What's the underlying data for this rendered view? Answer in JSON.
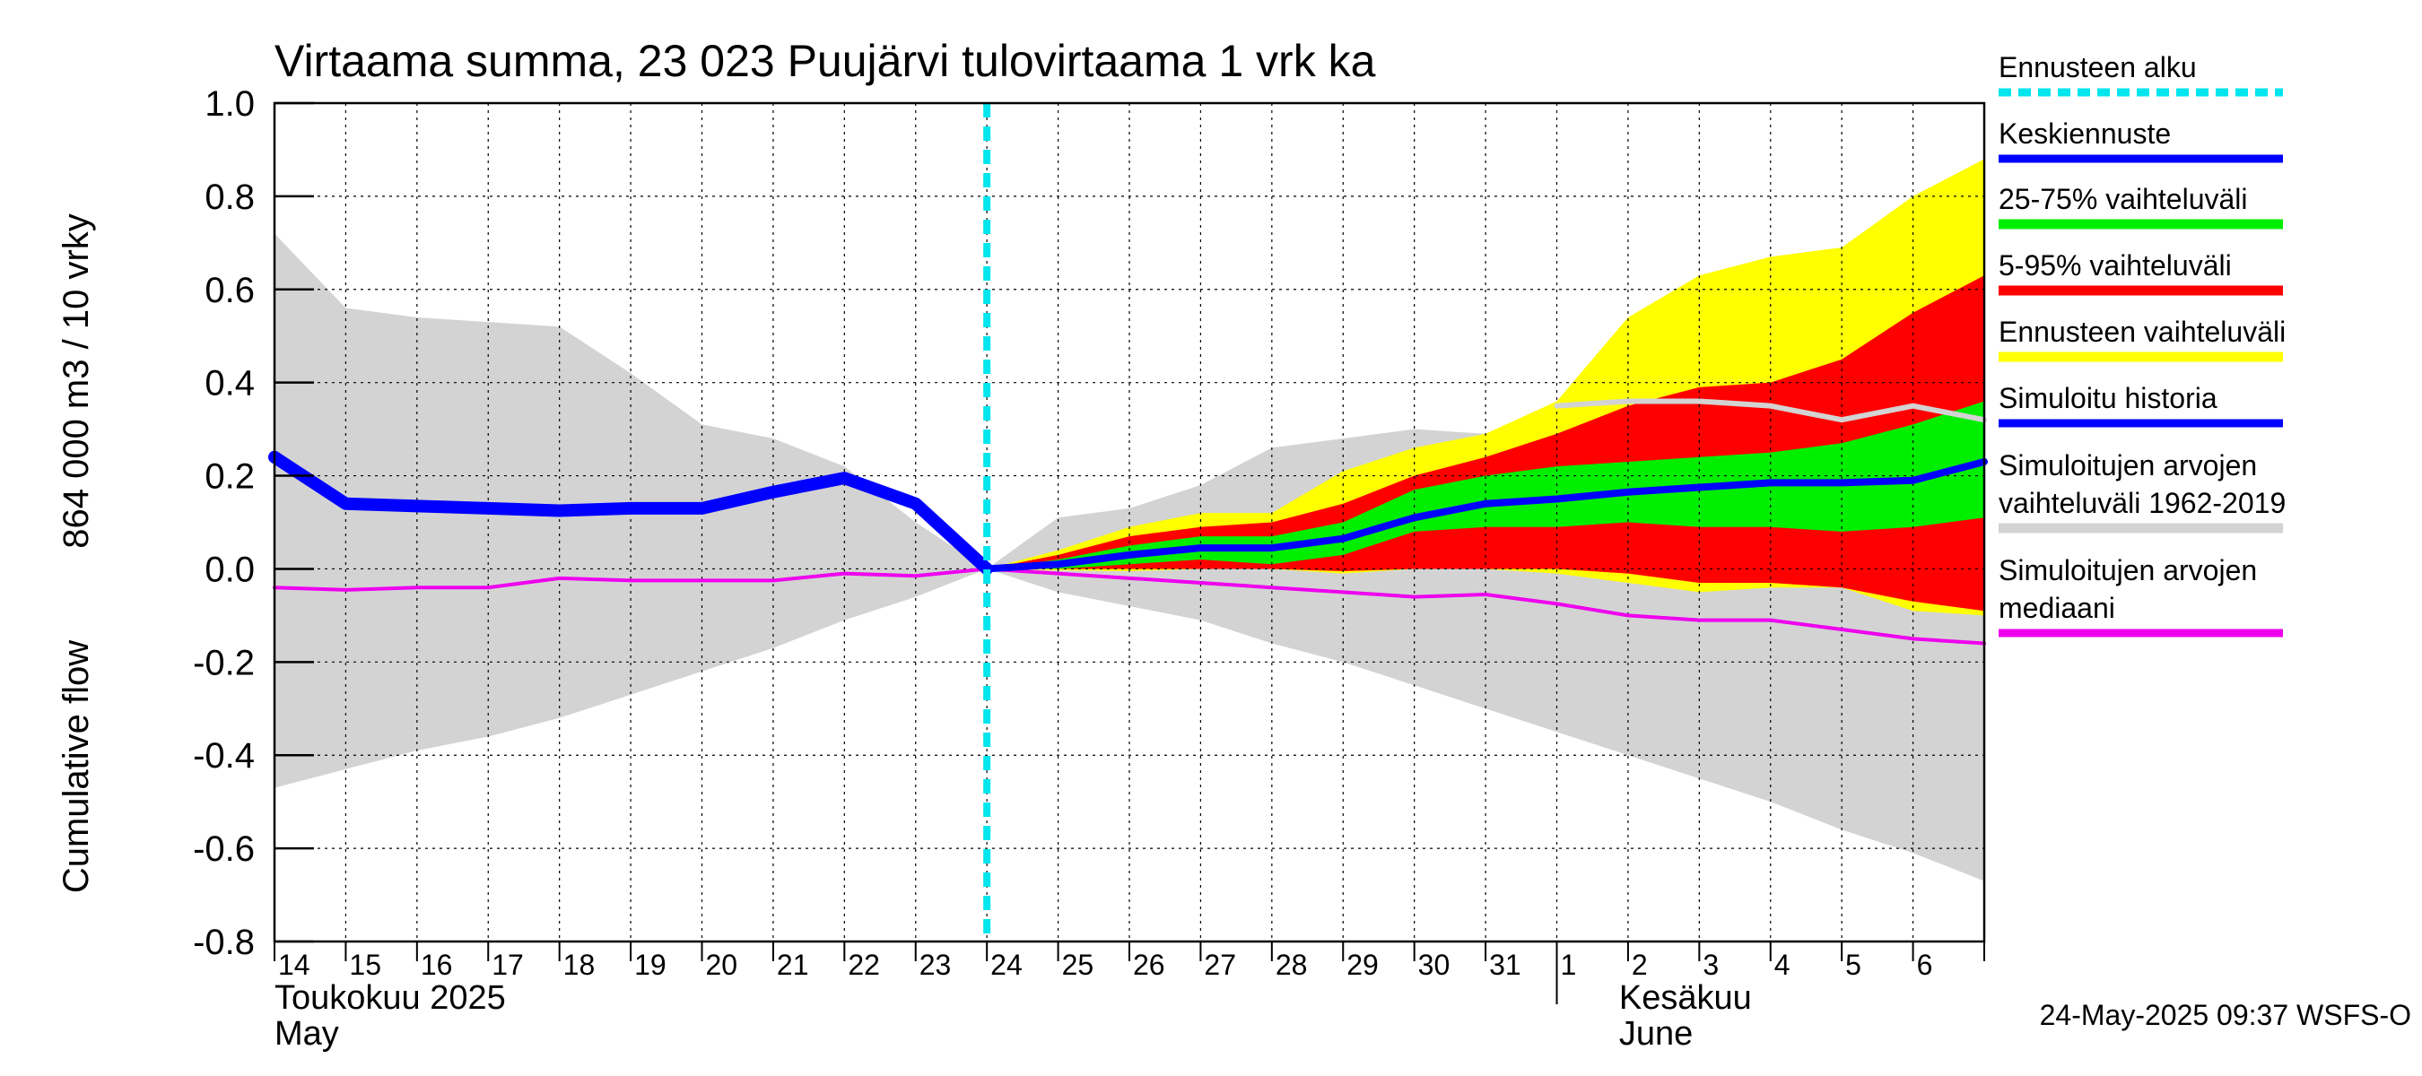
{
  "chart_data": {
    "type": "area",
    "title": "Virtaama summa, 23 023 Puujärvi tulovirtaama 1 vrk ka",
    "ylabel_line1": "Cumulative flow",
    "ylabel_line2": "864 000 m3 / 10 vrky",
    "ylim": [
      -0.8,
      1.0
    ],
    "yticks": [
      1.0,
      0.8,
      0.6,
      0.4,
      0.2,
      0.0,
      -0.2,
      -0.4,
      -0.6,
      -0.8
    ],
    "ytick_labels": [
      "1.0",
      "0.8",
      "0.6",
      "0.4",
      "0.2",
      "0.0",
      "-0.2",
      "-0.4",
      "-0.6",
      "-0.8"
    ],
    "x_dates": [
      "2025-05-14",
      "2025-05-15",
      "2025-05-16",
      "2025-05-17",
      "2025-05-18",
      "2025-05-19",
      "2025-05-20",
      "2025-05-21",
      "2025-05-22",
      "2025-05-23",
      "2025-05-24",
      "2025-05-25",
      "2025-05-26",
      "2025-05-27",
      "2025-05-28",
      "2025-05-29",
      "2025-05-30",
      "2025-05-31",
      "2025-06-01",
      "2025-06-02",
      "2025-06-03",
      "2025-06-04",
      "2025-06-05",
      "2025-06-06",
      "2025-06-07"
    ],
    "xtick_labels": [
      "14",
      "15",
      "16",
      "17",
      "18",
      "19",
      "20",
      "21",
      "22",
      "23",
      "24",
      "25",
      "26",
      "27",
      "28",
      "29",
      "30",
      "31",
      "1",
      "2",
      "3",
      "4",
      "5",
      "6"
    ],
    "month_labels": [
      {
        "line1": "Toukokuu  2025",
        "line2": "May"
      },
      {
        "line1": "Kesäkuu",
        "line2": "June"
      }
    ],
    "grid": true,
    "forecast_start_date": "2025-05-24",
    "legend_position": "right",
    "legend": [
      {
        "lines": [
          "Ennusteen alku"
        ],
        "color": "#00e5ee",
        "style": "dashed"
      },
      {
        "lines": [
          "Keskiennuste"
        ],
        "color": "#0000ff",
        "style": "line"
      },
      {
        "lines": [
          "25-75% vaihteluväli"
        ],
        "color": "#00ee00",
        "style": "band"
      },
      {
        "lines": [
          "5-95% vaihteluväli"
        ],
        "color": "#ff0000",
        "style": "band"
      },
      {
        "lines": [
          "Ennusteen vaihteluväli"
        ],
        "color": "#ffff00",
        "style": "band"
      },
      {
        "lines": [
          "Simuloitu historia"
        ],
        "color": "#0000ff",
        "style": "line"
      },
      {
        "lines": [
          "Simuloitujen arvojen",
          "vaihteluväli 1962-2019"
        ],
        "color": "#d3d3d3",
        "style": "band"
      },
      {
        "lines": [
          "Simuloitujen arvojen",
          "mediaani"
        ],
        "color": "#ee00ee",
        "style": "line"
      }
    ],
    "series": {
      "history_range": {
        "x": [
          "2025-05-14",
          "2025-05-15",
          "2025-05-16",
          "2025-05-17",
          "2025-05-18",
          "2025-05-19",
          "2025-05-20",
          "2025-05-21",
          "2025-05-22",
          "2025-05-23",
          "2025-05-24",
          "2025-05-25",
          "2025-05-26",
          "2025-05-27",
          "2025-05-28",
          "2025-05-29",
          "2025-05-30",
          "2025-05-31",
          "2025-06-01",
          "2025-06-02",
          "2025-06-03",
          "2025-06-04",
          "2025-06-05",
          "2025-06-06",
          "2025-06-07"
        ],
        "upper": [
          0.72,
          0.56,
          0.54,
          0.53,
          0.52,
          0.42,
          0.31,
          0.28,
          0.22,
          0.1,
          0.0,
          0.11,
          0.13,
          0.18,
          0.26,
          0.28,
          0.3,
          0.29,
          0.35,
          0.37,
          0.36,
          0.34,
          0.32,
          0.35,
          0.32
        ],
        "lower": [
          -0.47,
          -0.43,
          -0.39,
          -0.36,
          -0.32,
          -0.27,
          -0.22,
          -0.17,
          -0.11,
          -0.06,
          0.0,
          -0.05,
          -0.08,
          -0.11,
          -0.16,
          -0.2,
          -0.25,
          -0.3,
          -0.35,
          -0.4,
          -0.45,
          -0.5,
          -0.56,
          -0.61,
          -0.67
        ]
      },
      "forecast_range": {
        "x": [
          "2025-05-24",
          "2025-05-25",
          "2025-05-26",
          "2025-05-27",
          "2025-05-28",
          "2025-05-29",
          "2025-05-30",
          "2025-05-31",
          "2025-06-01",
          "2025-06-02",
          "2025-06-03",
          "2025-06-04",
          "2025-06-05",
          "2025-06-06",
          "2025-06-07"
        ],
        "upper": [
          0.0,
          0.04,
          0.09,
          0.12,
          0.12,
          0.21,
          0.26,
          0.29,
          0.36,
          0.54,
          0.63,
          0.67,
          0.69,
          0.8,
          0.88
        ],
        "lower": [
          0.0,
          -0.003,
          -0.005,
          0.0,
          0.0,
          -0.01,
          0.0,
          0.0,
          -0.01,
          -0.03,
          -0.05,
          -0.04,
          -0.04,
          -0.09,
          -0.1
        ]
      },
      "p5_95": {
        "x": [
          "2025-05-24",
          "2025-05-25",
          "2025-05-26",
          "2025-05-27",
          "2025-05-28",
          "2025-05-29",
          "2025-05-30",
          "2025-05-31",
          "2025-06-01",
          "2025-06-02",
          "2025-06-03",
          "2025-06-04",
          "2025-06-05",
          "2025-06-06",
          "2025-06-07"
        ],
        "upper": [
          0.0,
          0.03,
          0.07,
          0.09,
          0.1,
          0.14,
          0.2,
          0.24,
          0.29,
          0.35,
          0.39,
          0.4,
          0.45,
          0.55,
          0.63
        ],
        "lower": [
          0.0,
          0.0,
          0.0,
          0.0,
          0.0,
          -0.005,
          0.0,
          0.0,
          0.0,
          -0.01,
          -0.03,
          -0.03,
          -0.04,
          -0.07,
          -0.09
        ]
      },
      "p25_75": {
        "x": [
          "2025-05-24",
          "2025-05-25",
          "2025-05-26",
          "2025-05-27",
          "2025-05-28",
          "2025-05-29",
          "2025-05-30",
          "2025-05-31",
          "2025-06-01",
          "2025-06-02",
          "2025-06-03",
          "2025-06-04",
          "2025-06-05",
          "2025-06-06",
          "2025-06-07"
        ],
        "upper": [
          0.0,
          0.02,
          0.05,
          0.07,
          0.07,
          0.1,
          0.17,
          0.2,
          0.22,
          0.23,
          0.24,
          0.25,
          0.27,
          0.31,
          0.36
        ],
        "lower": [
          0.0,
          0.0,
          0.01,
          0.02,
          0.01,
          0.03,
          0.08,
          0.09,
          0.09,
          0.1,
          0.09,
          0.09,
          0.08,
          0.09,
          0.11
        ]
      },
      "mean_forecast": {
        "x": [
          "2025-05-24",
          "2025-05-25",
          "2025-05-26",
          "2025-05-27",
          "2025-05-28",
          "2025-05-29",
          "2025-05-30",
          "2025-05-31",
          "2025-06-01",
          "2025-06-02",
          "2025-06-03",
          "2025-06-04",
          "2025-06-05",
          "2025-06-06",
          "2025-06-07"
        ],
        "y": [
          0.0,
          0.01,
          0.03,
          0.045,
          0.045,
          0.065,
          0.11,
          0.14,
          0.15,
          0.165,
          0.175,
          0.185,
          0.185,
          0.19,
          0.23
        ]
      },
      "simulated_history": {
        "x": [
          "2025-05-14",
          "2025-05-15",
          "2025-05-16",
          "2025-05-17",
          "2025-05-18",
          "2025-05-19",
          "2025-05-20",
          "2025-05-21",
          "2025-05-22",
          "2025-05-23",
          "2025-05-24"
        ],
        "y": [
          0.24,
          0.14,
          0.135,
          0.13,
          0.125,
          0.13,
          0.13,
          0.165,
          0.195,
          0.14,
          0.0
        ]
      },
      "forecast_median_history": {
        "x": [
          "2025-06-01",
          "2025-06-02",
          "2025-06-03",
          "2025-06-04",
          "2025-06-05",
          "2025-06-06",
          "2025-06-07"
        ],
        "y": [
          0.35,
          0.36,
          0.36,
          0.35,
          0.32,
          0.35,
          0.32
        ]
      },
      "simulated_median": {
        "x": [
          "2025-05-14",
          "2025-05-15",
          "2025-05-16",
          "2025-05-17",
          "2025-05-18",
          "2025-05-19",
          "2025-05-20",
          "2025-05-21",
          "2025-05-22",
          "2025-05-23",
          "2025-05-24",
          "2025-05-25",
          "2025-05-26",
          "2025-05-27",
          "2025-05-28",
          "2025-05-29",
          "2025-05-30",
          "2025-05-31",
          "2025-06-01",
          "2025-06-02",
          "2025-06-03",
          "2025-06-04",
          "2025-06-05",
          "2025-06-06",
          "2025-06-07"
        ],
        "y": [
          -0.04,
          -0.045,
          -0.04,
          -0.04,
          -0.02,
          -0.025,
          -0.025,
          -0.025,
          -0.01,
          -0.015,
          0.0,
          -0.01,
          -0.02,
          -0.03,
          -0.04,
          -0.05,
          -0.06,
          -0.055,
          -0.075,
          -0.1,
          -0.11,
          -0.11,
          -0.13,
          -0.15,
          -0.16
        ]
      }
    }
  },
  "timestamp": "24-May-2025 09:37 WSFS-O"
}
